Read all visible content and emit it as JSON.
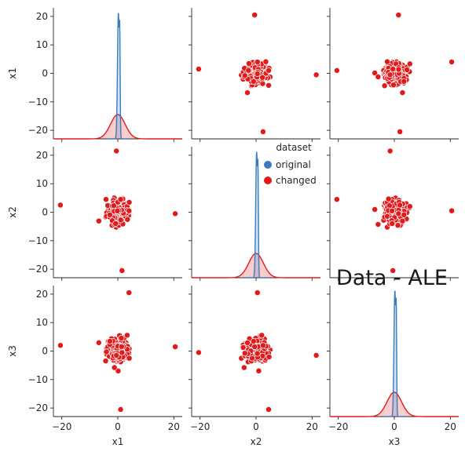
{
  "chart_data": {
    "type": "scatter",
    "variables": [
      "x1",
      "x2",
      "x3"
    ],
    "axis_range": [
      -23,
      23
    ],
    "ticks": [
      -20,
      -10,
      0,
      10,
      20
    ],
    "x_tick_labels": [
      "-20",
      "0",
      "20"
    ],
    "legend": {
      "title": "dataset",
      "placement": "right",
      "entries": [
        {
          "label": "original",
          "color": "#3a7bbf"
        },
        {
          "label": "changed",
          "color": "#e31a1c"
        }
      ]
    },
    "annotation": "Data - ALE",
    "series": [
      {
        "name": "changed",
        "outliers": [
          {
            "x1": 20.5,
            "x2": -0.5,
            "x3": 1.5
          },
          {
            "x1": -0.5,
            "x2": 21.5,
            "x3": -1.5
          },
          {
            "x1": 1.5,
            "x2": -20.5,
            "x3": -0.5
          },
          {
            "x1": -20.5,
            "x2": 2.5,
            "x3": 2.0
          },
          {
            "x1": 4.0,
            "x2": 0.5,
            "x3": 20.5
          },
          {
            "x1": 1.0,
            "x2": 4.5,
            "x3": -20.5
          }
        ]
      },
      {
        "name": "original",
        "distribution": "standard-normal-cluster",
        "spread": 2.0
      }
    ],
    "diagonal": "kde",
    "grid": false
  }
}
